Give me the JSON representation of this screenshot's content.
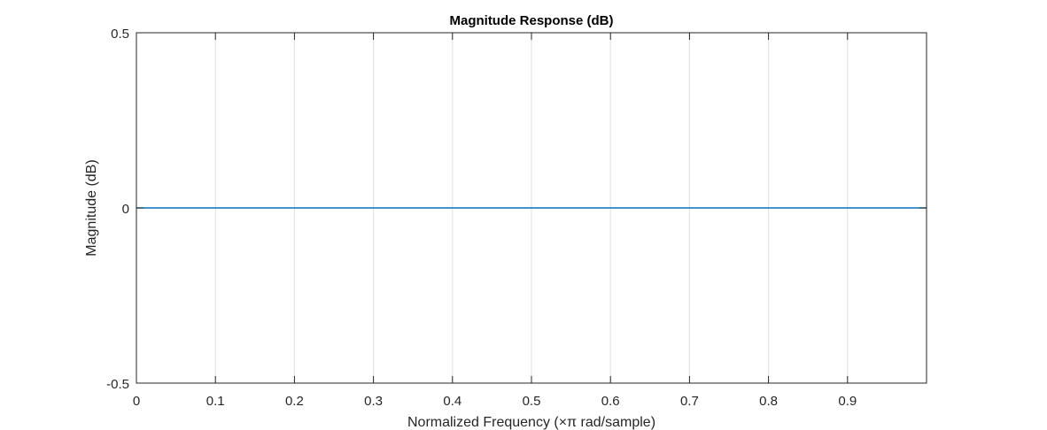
{
  "chart_data": {
    "type": "line",
    "title": "Magnitude Response (dB)",
    "xlabel": "Normalized Frequency (×π rad/sample)",
    "ylabel": "Magnitude (dB)",
    "xlim": [
      0,
      1
    ],
    "ylim": [
      -0.5,
      0.5
    ],
    "xticks": [
      0,
      0.1,
      0.2,
      0.3,
      0.4,
      0.5,
      0.6,
      0.7,
      0.8,
      0.9
    ],
    "xtick_labels": [
      "0",
      "0.1",
      "0.2",
      "0.3",
      "0.4",
      "0.5",
      "0.6",
      "0.7",
      "0.8",
      "0.9"
    ],
    "yticks": [
      -0.5,
      0,
      0.5
    ],
    "ytick_labels": [
      "-0.5",
      "0",
      "0.5"
    ],
    "grid": "x-major",
    "series": [
      {
        "x": [
          0,
          0.1,
          0.2,
          0.3,
          0.4,
          0.5,
          0.6,
          0.7,
          0.8,
          0.9,
          1.0
        ],
        "y": [
          0,
          0,
          0,
          0,
          0,
          0,
          0,
          0,
          0,
          0,
          0
        ],
        "color": "#0072bd"
      }
    ]
  }
}
